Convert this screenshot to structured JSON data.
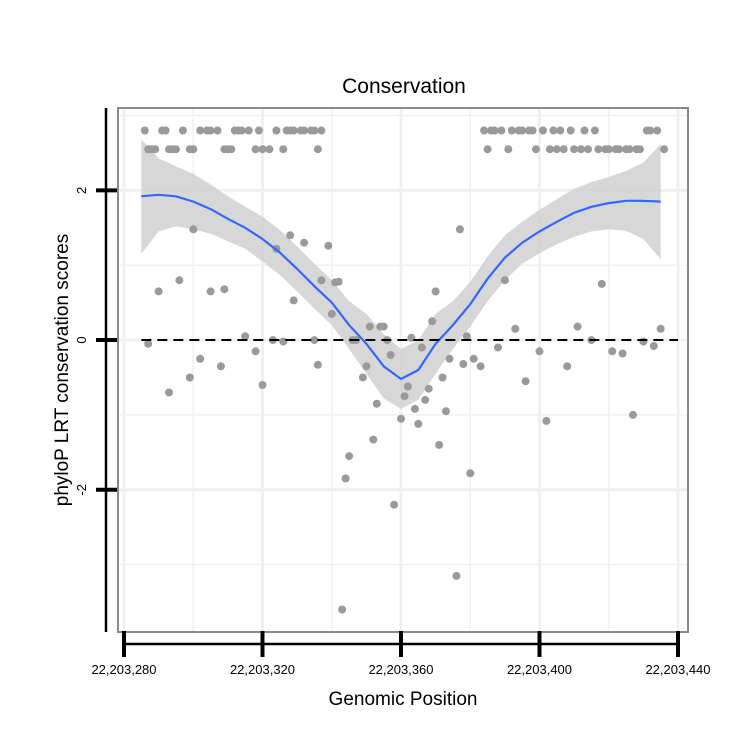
{
  "chart_data": {
    "type": "scatter",
    "title": "Conservation",
    "xlabel": "Genomic Position",
    "ylabel": "phyloP LRT conservation scores",
    "xlim": [
      22203280,
      22203440
    ],
    "ylim": [
      -3.9,
      3.1
    ],
    "x_ticks": [
      22203280,
      22203320,
      22203360,
      22203400,
      22203440
    ],
    "x_tick_labels": [
      "22,203,280",
      "22,203,320",
      "22,203,360",
      "22,203,400",
      "22,203,440"
    ],
    "y_ticks": [
      -2,
      0,
      2
    ],
    "y_tick_labels": [
      "-2",
      "0",
      "2"
    ],
    "reference_line": {
      "y": 0,
      "style": "dashed"
    },
    "colors": {
      "points": "#9a9a9a",
      "smooth": "#3366ff",
      "band": "#d0d0d0",
      "grid": "#f0f0f0",
      "frame": "#8a8a8a",
      "reference": "#000000"
    },
    "series": [
      {
        "name": "phyloP scores",
        "points": [
          [
            22203286,
            2.8
          ],
          [
            22203287,
            2.55
          ],
          [
            22203288,
            2.55
          ],
          [
            22203289,
            2.55
          ],
          [
            22203291,
            2.8
          ],
          [
            22203292,
            2.8
          ],
          [
            22203293,
            2.55
          ],
          [
            22203294,
            2.55
          ],
          [
            22203295,
            2.55
          ],
          [
            22203297,
            2.8
          ],
          [
            22203299,
            2.55
          ],
          [
            22203300,
            2.55
          ],
          [
            22203302,
            2.8
          ],
          [
            22203304,
            2.8
          ],
          [
            22203305,
            2.8
          ],
          [
            22203307,
            2.8
          ],
          [
            22203309,
            2.55
          ],
          [
            22203310,
            2.55
          ],
          [
            22203311,
            2.55
          ],
          [
            22203312,
            2.8
          ],
          [
            22203313,
            2.8
          ],
          [
            22203314,
            2.8
          ],
          [
            22203316,
            2.8
          ],
          [
            22203318,
            2.55
          ],
          [
            22203319,
            2.8
          ],
          [
            22203320,
            2.55
          ],
          [
            22203322,
            2.55
          ],
          [
            22203324,
            2.8
          ],
          [
            22203326,
            2.55
          ],
          [
            22203327,
            2.8
          ],
          [
            22203328,
            2.8
          ],
          [
            22203329,
            2.8
          ],
          [
            22203331,
            2.8
          ],
          [
            22203332,
            2.8
          ],
          [
            22203334,
            2.8
          ],
          [
            22203335,
            2.8
          ],
          [
            22203336,
            2.55
          ],
          [
            22203337,
            2.8
          ],
          [
            22203287,
            -0.05
          ],
          [
            22203290,
            0.65
          ],
          [
            22203293,
            -0.7
          ],
          [
            22203296,
            0.8
          ],
          [
            22203299,
            -0.5
          ],
          [
            22203300,
            1.48
          ],
          [
            22203302,
            -0.25
          ],
          [
            22203305,
            0.65
          ],
          [
            22203308,
            -0.35
          ],
          [
            22203309,
            0.68
          ],
          [
            22203315,
            0.05
          ],
          [
            22203318,
            -0.15
          ],
          [
            22203320,
            -0.6
          ],
          [
            22203323,
            0.0
          ],
          [
            22203324,
            1.22
          ],
          [
            22203326,
            -0.02
          ],
          [
            22203328,
            1.4
          ],
          [
            22203329,
            0.53
          ],
          [
            22203332,
            1.3
          ],
          [
            22203335,
            0.0
          ],
          [
            22203336,
            -0.33
          ],
          [
            22203337,
            0.8
          ],
          [
            22203339,
            1.26
          ],
          [
            22203340,
            0.35
          ],
          [
            22203341,
            0.77
          ],
          [
            22203342,
            0.78
          ],
          [
            22203343,
            -3.6
          ],
          [
            22203344,
            -1.85
          ],
          [
            22203345,
            -1.55
          ],
          [
            22203346,
            0.0
          ],
          [
            22203347,
            0.0
          ],
          [
            22203349,
            -0.5
          ],
          [
            22203350,
            -0.35
          ],
          [
            22203351,
            0.18
          ],
          [
            22203352,
            -1.33
          ],
          [
            22203353,
            -0.85
          ],
          [
            22203354,
            0.18
          ],
          [
            22203355,
            0.18
          ],
          [
            22203356,
            0.0
          ],
          [
            22203357,
            -0.2
          ],
          [
            22203358,
            -2.2
          ],
          [
            22203360,
            -1.05
          ],
          [
            22203361,
            -0.75
          ],
          [
            22203362,
            -0.62
          ],
          [
            22203363,
            0.03
          ],
          [
            22203364,
            -0.92
          ],
          [
            22203365,
            -1.12
          ],
          [
            22203366,
            -0.1
          ],
          [
            22203367,
            -0.8
          ],
          [
            22203368,
            -0.65
          ],
          [
            22203369,
            0.25
          ],
          [
            22203370,
            0.65
          ],
          [
            22203371,
            -1.4
          ],
          [
            22203372,
            -0.5
          ],
          [
            22203373,
            -0.95
          ],
          [
            22203374,
            -0.25
          ],
          [
            22203376,
            -3.15
          ],
          [
            22203377,
            1.48
          ],
          [
            22203378,
            -0.32
          ],
          [
            22203379,
            0.05
          ],
          [
            22203380,
            -1.78
          ],
          [
            22203381,
            -0.25
          ],
          [
            22203383,
            -0.35
          ],
          [
            22203384,
            2.8
          ],
          [
            22203385,
            2.55
          ],
          [
            22203386,
            2.8
          ],
          [
            22203387,
            2.8
          ],
          [
            22203388,
            -0.1
          ],
          [
            22203389,
            2.8
          ],
          [
            22203390,
            0.8
          ],
          [
            22203391,
            2.55
          ],
          [
            22203392,
            2.8
          ],
          [
            22203393,
            0.15
          ],
          [
            22203394,
            2.8
          ],
          [
            22203395,
            2.8
          ],
          [
            22203396,
            -0.55
          ],
          [
            22203397,
            2.8
          ],
          [
            22203398,
            2.8
          ],
          [
            22203399,
            2.55
          ],
          [
            22203400,
            -0.15
          ],
          [
            22203401,
            2.8
          ],
          [
            22203402,
            -1.08
          ],
          [
            22203403,
            2.55
          ],
          [
            22203404,
            2.8
          ],
          [
            22203405,
            2.55
          ],
          [
            22203406,
            2.8
          ],
          [
            22203407,
            2.55
          ],
          [
            22203408,
            -0.35
          ],
          [
            22203409,
            2.8
          ],
          [
            22203410,
            2.55
          ],
          [
            22203411,
            0.18
          ],
          [
            22203412,
            2.55
          ],
          [
            22203413,
            2.8
          ],
          [
            22203414,
            2.55
          ],
          [
            22203415,
            0.0
          ],
          [
            22203416,
            2.8
          ],
          [
            22203417,
            2.55
          ],
          [
            22203418,
            0.75
          ],
          [
            22203419,
            2.55
          ],
          [
            22203420,
            2.55
          ],
          [
            22203421,
            -0.15
          ],
          [
            22203422,
            2.55
          ],
          [
            22203423,
            2.55
          ],
          [
            22203424,
            -0.18
          ],
          [
            22203425,
            2.55
          ],
          [
            22203426,
            2.55
          ],
          [
            22203427,
            -1.0
          ],
          [
            22203428,
            2.55
          ],
          [
            22203429,
            2.55
          ],
          [
            22203430,
            -0.02
          ],
          [
            22203431,
            2.8
          ],
          [
            22203432,
            2.8
          ],
          [
            22203433,
            -0.08
          ],
          [
            22203434,
            2.8
          ],
          [
            22203435,
            0.15
          ],
          [
            22203436,
            2.55
          ]
        ]
      },
      {
        "name": "loess fit",
        "x": [
          22203285,
          22203290,
          22203295,
          22203300,
          22203305,
          22203310,
          22203315,
          22203320,
          22203325,
          22203330,
          22203335,
          22203340,
          22203345,
          22203350,
          22203355,
          22203360,
          22203365,
          22203370,
          22203375,
          22203380,
          22203385,
          22203390,
          22203395,
          22203400,
          22203405,
          22203410,
          22203415,
          22203420,
          22203425,
          22203430,
          22203435
        ],
        "y": [
          1.92,
          1.94,
          1.92,
          1.85,
          1.75,
          1.62,
          1.5,
          1.35,
          1.17,
          0.95,
          0.72,
          0.5,
          0.2,
          -0.05,
          -0.35,
          -0.52,
          -0.4,
          -0.05,
          0.2,
          0.48,
          0.82,
          1.1,
          1.3,
          1.45,
          1.58,
          1.7,
          1.78,
          1.83,
          1.86,
          1.86,
          1.85
        ],
        "lower": [
          1.15,
          1.45,
          1.52,
          1.48,
          1.42,
          1.32,
          1.22,
          1.05,
          0.87,
          0.65,
          0.42,
          0.2,
          -0.12,
          -0.45,
          -0.78,
          -0.92,
          -0.8,
          -0.45,
          -0.12,
          0.18,
          0.52,
          0.8,
          1.02,
          1.16,
          1.28,
          1.38,
          1.45,
          1.48,
          1.46,
          1.35,
          1.08
        ],
        "upper": [
          2.68,
          2.43,
          2.32,
          2.22,
          2.08,
          1.92,
          1.78,
          1.65,
          1.47,
          1.25,
          1.02,
          0.8,
          0.52,
          0.35,
          0.08,
          -0.12,
          0.0,
          0.35,
          0.52,
          0.78,
          1.12,
          1.4,
          1.58,
          1.74,
          1.88,
          2.02,
          2.11,
          2.18,
          2.26,
          2.37,
          2.62
        ]
      }
    ]
  }
}
